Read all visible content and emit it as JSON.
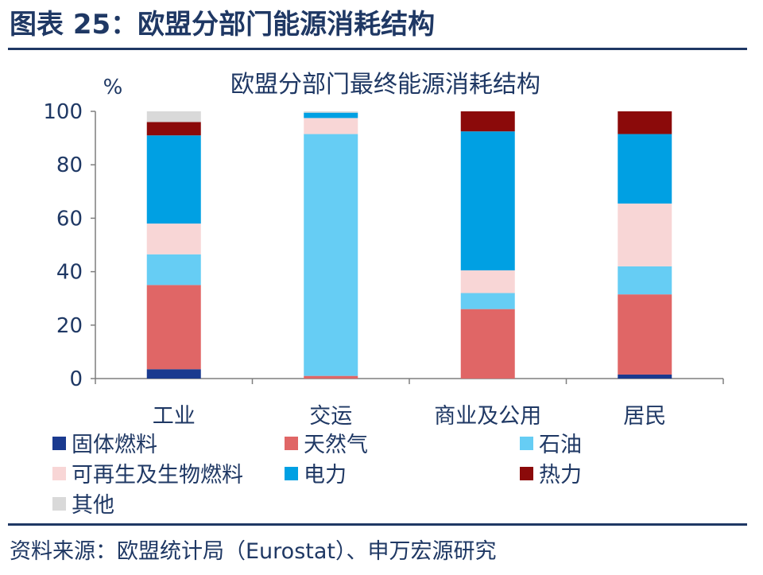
{
  "figure_title": "图表 25：欧盟分部门能源消耗结构",
  "source": "资料来源：欧盟统计局（Eurostat）、申万宏源研究",
  "chart_data": {
    "type": "bar",
    "stacked": true,
    "title": "欧盟分部门最终能源消耗结构",
    "ylabel": "%",
    "xlabel": "",
    "ylim": [
      0,
      100
    ],
    "yticks": [
      0,
      20,
      40,
      60,
      80,
      100
    ],
    "categories": [
      "工业",
      "交运",
      "商业及公用",
      "居民"
    ],
    "legend_position": "bottom",
    "grid": false,
    "series": [
      {
        "name": "固体燃料",
        "color": "#1a3a8f",
        "values": [
          3.5,
          0,
          0,
          1.5
        ]
      },
      {
        "name": "天然气",
        "color": "#e06666",
        "values": [
          31.5,
          1.0,
          26.0,
          30.0
        ]
      },
      {
        "name": "石油",
        "color": "#66cdf4",
        "values": [
          11.5,
          90.5,
          6.0,
          10.5
        ]
      },
      {
        "name": "可再生及生物燃料",
        "color": "#f8d6d6",
        "values": [
          11.5,
          6.0,
          8.5,
          23.5
        ]
      },
      {
        "name": "电力",
        "color": "#00a0e3",
        "values": [
          33.0,
          2.0,
          52.0,
          26.0
        ]
      },
      {
        "name": "热力",
        "color": "#8b0a0a",
        "values": [
          5.0,
          0,
          7.5,
          8.5
        ]
      },
      {
        "name": "其他",
        "color": "#d9d9d9",
        "values": [
          4.0,
          0.5,
          0,
          0
        ]
      }
    ]
  }
}
